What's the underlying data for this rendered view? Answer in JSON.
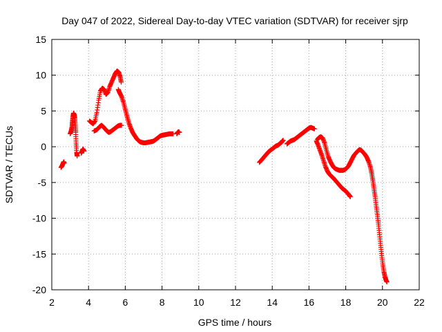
{
  "chart_data": {
    "type": "scatter",
    "title": "Day 047 of 2022, Sidereal Day-to-day VTEC variation (SDTVAR) for receiver sjrp",
    "xlabel": "GPS time / hours",
    "ylabel": "SDTVAR / TECUs",
    "xlim": [
      2,
      22
    ],
    "ylim": [
      -20,
      15
    ],
    "xticks": [
      2,
      4,
      6,
      8,
      10,
      12,
      14,
      16,
      18,
      20,
      22
    ],
    "yticks": [
      -20,
      -15,
      -10,
      -5,
      0,
      5,
      10,
      15
    ],
    "grid": true,
    "marker": "plus",
    "color": "#ff0000",
    "series": [
      {
        "name": "sjrp",
        "segments": [
          [
            [
              2.5,
              -2.9
            ],
            [
              2.55,
              -2.7
            ],
            [
              2.6,
              -2.4
            ],
            [
              2.65,
              -2.1
            ],
            [
              2.68,
              -2.3
            ]
          ],
          [
            [
              3.0,
              1.8
            ],
            [
              3.05,
              2.2
            ],
            [
              3.1,
              2.8
            ],
            [
              3.12,
              3.5
            ],
            [
              3.15,
              4.2
            ],
            [
              3.18,
              4.7
            ],
            [
              3.22,
              4.5
            ],
            [
              3.25,
              4.0
            ],
            [
              3.28,
              3.0
            ],
            [
              3.3,
              2.0
            ],
            [
              3.32,
              0.5
            ],
            [
              3.35,
              -0.8
            ],
            [
              3.38,
              -1.3
            ]
          ],
          [
            [
              3.6,
              -0.9
            ],
            [
              3.65,
              -0.6
            ],
            [
              3.7,
              -0.3
            ],
            [
              3.75,
              -0.6
            ]
          ],
          [
            [
              4.05,
              3.6
            ],
            [
              4.15,
              3.4
            ],
            [
              4.25,
              3.2
            ],
            [
              4.35,
              3.6
            ],
            [
              4.45,
              4.8
            ],
            [
              4.55,
              6.5
            ],
            [
              4.65,
              7.8
            ],
            [
              4.75,
              8.2
            ],
            [
              4.85,
              8.0
            ],
            [
              4.95,
              7.3
            ],
            [
              5.05,
              7.6
            ],
            [
              5.15,
              8.4
            ],
            [
              5.25,
              9.0
            ],
            [
              5.35,
              9.6
            ],
            [
              5.45,
              10.2
            ],
            [
              5.55,
              10.6
            ],
            [
              5.65,
              10.4
            ],
            [
              5.72,
              9.8
            ],
            [
              5.78,
              9.0
            ]
          ],
          [
            [
              4.3,
              2.2
            ],
            [
              4.4,
              2.3
            ],
            [
              4.5,
              2.5
            ],
            [
              4.6,
              2.8
            ],
            [
              4.7,
              3.0
            ],
            [
              4.8,
              2.8
            ],
            [
              4.9,
              2.5
            ],
            [
              5.0,
              2.2
            ],
            [
              5.1,
              2.0
            ],
            [
              5.2,
              2.1
            ],
            [
              5.3,
              2.3
            ],
            [
              5.4,
              2.5
            ],
            [
              5.5,
              2.7
            ],
            [
              5.6,
              2.9
            ],
            [
              5.7,
              3.0
            ],
            [
              5.8,
              3.0
            ]
          ],
          [
            [
              5.62,
              8.0
            ],
            [
              5.7,
              7.5
            ],
            [
              5.8,
              7.0
            ],
            [
              5.9,
              6.2
            ],
            [
              6.0,
              5.2
            ],
            [
              6.1,
              4.2
            ],
            [
              6.2,
              3.3
            ],
            [
              6.3,
              2.6
            ],
            [
              6.4,
              2.0
            ],
            [
              6.5,
              1.6
            ],
            [
              6.6,
              1.2
            ],
            [
              6.7,
              0.9
            ],
            [
              6.8,
              0.7
            ],
            [
              6.9,
              0.6
            ],
            [
              7.0,
              0.55
            ],
            [
              7.1,
              0.55
            ],
            [
              7.2,
              0.6
            ],
            [
              7.3,
              0.65
            ],
            [
              7.4,
              0.7
            ],
            [
              7.5,
              0.75
            ],
            [
              7.6,
              0.9
            ],
            [
              7.7,
              1.1
            ],
            [
              7.8,
              1.3
            ],
            [
              7.9,
              1.5
            ],
            [
              8.0,
              1.6
            ],
            [
              8.1,
              1.65
            ],
            [
              8.2,
              1.7
            ],
            [
              8.3,
              1.75
            ],
            [
              8.4,
              1.8
            ],
            [
              8.5,
              1.8
            ],
            [
              8.6,
              1.8
            ]
          ],
          [
            [
              8.8,
              1.8
            ],
            [
              8.85,
              2.0
            ],
            [
              8.9,
              2.1
            ],
            [
              8.95,
              2.0
            ]
          ],
          [
            [
              13.3,
              -2.2
            ],
            [
              13.4,
              -1.9
            ],
            [
              13.5,
              -1.6
            ],
            [
              13.6,
              -1.3
            ],
            [
              13.7,
              -1.0
            ],
            [
              13.8,
              -0.7
            ],
            [
              13.9,
              -0.5
            ],
            [
              14.0,
              -0.3
            ],
            [
              14.1,
              -0.1
            ],
            [
              14.2,
              0.1
            ],
            [
              14.3,
              0.2
            ],
            [
              14.4,
              0.4
            ],
            [
              14.5,
              0.6
            ],
            [
              14.55,
              0.8
            ],
            [
              14.6,
              0.9
            ]
          ],
          [
            [
              14.8,
              0.4
            ],
            [
              14.9,
              0.6
            ],
            [
              15.0,
              0.8
            ],
            [
              15.1,
              0.9
            ],
            [
              15.2,
              1.0
            ],
            [
              15.3,
              1.2
            ],
            [
              15.4,
              1.4
            ],
            [
              15.5,
              1.6
            ],
            [
              15.6,
              1.8
            ],
            [
              15.7,
              2.0
            ],
            [
              15.8,
              2.2
            ],
            [
              15.9,
              2.4
            ],
            [
              16.0,
              2.6
            ],
            [
              16.1,
              2.7
            ],
            [
              16.2,
              2.6
            ],
            [
              16.3,
              2.5
            ]
          ],
          [
            [
              16.45,
              1.0
            ],
            [
              16.55,
              1.3
            ],
            [
              16.65,
              1.4
            ],
            [
              16.75,
              1.2
            ],
            [
              16.85,
              0.5
            ],
            [
              16.95,
              -0.5
            ],
            [
              17.05,
              -1.4
            ],
            [
              17.15,
              -2.0
            ],
            [
              17.25,
              -2.5
            ],
            [
              17.35,
              -2.9
            ],
            [
              17.45,
              -3.1
            ],
            [
              17.55,
              -3.2
            ],
            [
              17.65,
              -3.3
            ],
            [
              17.75,
              -3.3
            ],
            [
              17.85,
              -3.3
            ],
            [
              17.95,
              -3.2
            ],
            [
              18.05,
              -3.0
            ],
            [
              18.15,
              -2.7
            ],
            [
              18.25,
              -2.2
            ],
            [
              18.35,
              -1.7
            ],
            [
              18.45,
              -1.2
            ],
            [
              18.55,
              -0.9
            ],
            [
              18.65,
              -0.6
            ],
            [
              18.75,
              -0.4
            ],
            [
              18.85,
              -0.5
            ],
            [
              18.95,
              -0.8
            ],
            [
              19.05,
              -1.1
            ],
            [
              19.15,
              -1.5
            ],
            [
              19.25,
              -2.1
            ],
            [
              19.35,
              -2.9
            ],
            [
              19.42,
              -3.8
            ],
            [
              19.48,
              -4.8
            ],
            [
              19.54,
              -5.9
            ],
            [
              19.6,
              -7.0
            ],
            [
              19.66,
              -8.3
            ],
            [
              19.72,
              -9.5
            ],
            [
              19.78,
              -10.8
            ],
            [
              19.84,
              -12.3
            ],
            [
              19.9,
              -13.8
            ],
            [
              19.96,
              -15.2
            ],
            [
              20.02,
              -16.5
            ],
            [
              20.08,
              -17.5
            ],
            [
              20.14,
              -18.2
            ],
            [
              20.2,
              -18.7
            ],
            [
              20.24,
              -18.9
            ]
          ],
          [
            [
              16.4,
              0.8
            ],
            [
              16.5,
              0.2
            ],
            [
              16.6,
              -0.5
            ],
            [
              16.7,
              -1.2
            ],
            [
              16.8,
              -2.0
            ],
            [
              16.9,
              -2.8
            ],
            [
              17.0,
              -3.4
            ],
            [
              17.1,
              -3.8
            ],
            [
              17.2,
              -4.1
            ],
            [
              17.3,
              -4.3
            ],
            [
              17.4,
              -4.6
            ],
            [
              17.5,
              -4.9
            ],
            [
              17.6,
              -5.2
            ],
            [
              17.7,
              -5.5
            ],
            [
              17.8,
              -5.8
            ],
            [
              17.9,
              -6.0
            ],
            [
              18.0,
              -6.2
            ],
            [
              18.1,
              -6.5
            ],
            [
              18.2,
              -6.8
            ],
            [
              18.25,
              -7.0
            ]
          ]
        ]
      }
    ]
  }
}
